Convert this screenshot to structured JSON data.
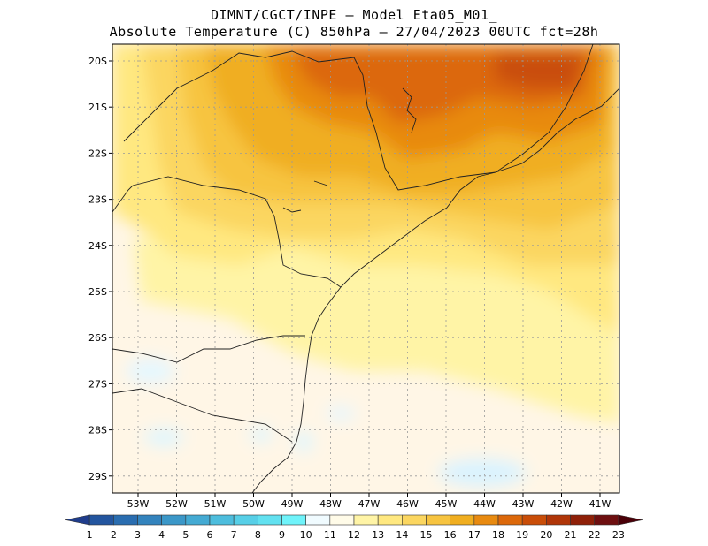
{
  "title_line1": "DIMNT/CGCT/INPE —  Model Eta05_M01_",
  "title_line2": "Absolute Temperature (C) 850hPa —  27/04/2023 00UTC fct=28h",
  "map": {
    "lat_labels": [
      "20S",
      "21S",
      "22S",
      "23S",
      "24S",
      "25S",
      "26S",
      "27S",
      "28S",
      "29S"
    ],
    "lon_labels": [
      "53W",
      "52W",
      "51W",
      "50W",
      "49W",
      "48W",
      "47W",
      "46W",
      "45W",
      "44W",
      "43W",
      "42W",
      "41W"
    ]
  },
  "colorbar": {
    "labels": [
      "1",
      "2",
      "3",
      "4",
      "5",
      "6",
      "7",
      "8",
      "9",
      "10",
      "11",
      "12",
      "13",
      "14",
      "15",
      "16",
      "17",
      "18",
      "19",
      "20",
      "21",
      "22",
      "23"
    ],
    "colors": [
      "#1f3d8c",
      "#23559f",
      "#2a6db0",
      "#3383bd",
      "#3b97c8",
      "#44aad3",
      "#4dbddd",
      "#57cfe7",
      "#62e1f0",
      "#6ff3fa",
      "#f0fbff",
      "#fffbe8",
      "#fff4a6",
      "#ffe880",
      "#fbd660",
      "#f7c440",
      "#f0ae20",
      "#e88a10",
      "#dc680a",
      "#c94d08",
      "#b03508",
      "#8f2008",
      "#6e0f10",
      "#4a0008"
    ]
  }
}
